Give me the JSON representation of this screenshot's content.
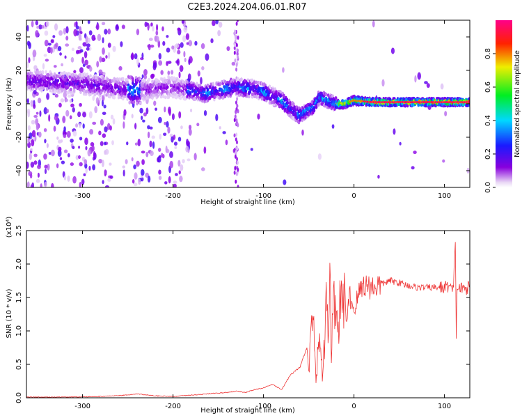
{
  "title": "C2E3.2024.204.06.01.R07",
  "chart_data": [
    {
      "type": "heatmap",
      "xlabel": "Height of straight line (km)",
      "ylabel": "Frequency (Hz)",
      "xlim": [
        -362,
        128
      ],
      "ylim": [
        -50,
        50
      ],
      "xticks": [
        -300,
        -200,
        -100,
        0,
        100
      ],
      "yticks": [
        -40,
        -20,
        0,
        20,
        40
      ],
      "colorbar": {
        "label": "Normalized spectral amplitude",
        "range": [
          0,
          1
        ],
        "ticks": [
          "0.0",
          "0.2",
          "0.4",
          "0.6",
          "0.8"
        ],
        "colormap": "rainbow (white/violet low, blue, cyan, green, yellow, red, magenta high)"
      },
      "ridge": {
        "x": [
          -365,
          -300,
          -255,
          -240,
          -200,
          -180,
          -165,
          -150,
          -130,
          -110,
          -95,
          -80,
          -70,
          -60,
          -52,
          -45,
          -38,
          -30,
          -20,
          -10,
          0,
          20,
          60,
          100,
          128
        ],
        "y": [
          14,
          12,
          9,
          8,
          10,
          8,
          6,
          8,
          10,
          9,
          6,
          2,
          -3,
          -7,
          -4,
          -2,
          4,
          2,
          0,
          0,
          2,
          1,
          1,
          1,
          1
        ]
      }
    },
    {
      "type": "line",
      "xlabel": "Height of straight line (km)",
      "ylabel": "SNR (10 * v/v)",
      "y_scale_note": "(x10⁴)",
      "xlim": [
        -362,
        128
      ],
      "ylim": [
        0,
        2.5
      ],
      "xticks": [
        -300,
        -200,
        -100,
        0,
        100
      ],
      "yticks": [
        "0.0",
        "0.5",
        "1.0",
        "1.5",
        "2.0",
        "2.5"
      ],
      "series": [
        {
          "color": "#ee3333",
          "x": [
            -362,
            -320,
            -280,
            -250,
            -240,
            -220,
            -200,
            -180,
            -160,
            -140,
            -130,
            -120,
            -110,
            -100,
            -90,
            -80,
            -70,
            -60,
            -52,
            -50,
            -45,
            -42,
            -38,
            -35,
            -32,
            -30,
            -28,
            -26,
            -25,
            -24,
            -22,
            -20,
            -18,
            -15,
            -12,
            -10,
            -8,
            -5,
            0,
            5,
            10,
            20,
            30,
            40,
            50,
            60,
            70,
            80,
            90,
            100,
            105,
            108,
            110,
            112,
            113,
            114,
            115,
            116,
            120,
            128
          ],
          "y": [
            0.01,
            0.01,
            0.02,
            0.04,
            0.06,
            0.03,
            0.02,
            0.04,
            0.06,
            0.08,
            0.1,
            0.08,
            0.12,
            0.15,
            0.2,
            0.12,
            0.35,
            0.45,
            0.75,
            0.4,
            1.25,
            0.2,
            1.05,
            0.35,
            0.9,
            1.6,
            0.8,
            1.95,
            0.6,
            1.05,
            1.4,
            1.6,
            0.95,
            1.4,
            1.35,
            1.65,
            1.05,
            1.55,
            1.3,
            1.55,
            1.7,
            1.65,
            1.7,
            1.75,
            1.72,
            1.68,
            1.65,
            1.65,
            1.65,
            1.65,
            1.68,
            1.6,
            1.62,
            2.45,
            0.85,
            1.7,
            1.62,
            1.65,
            1.62,
            1.65
          ]
        }
      ]
    }
  ]
}
